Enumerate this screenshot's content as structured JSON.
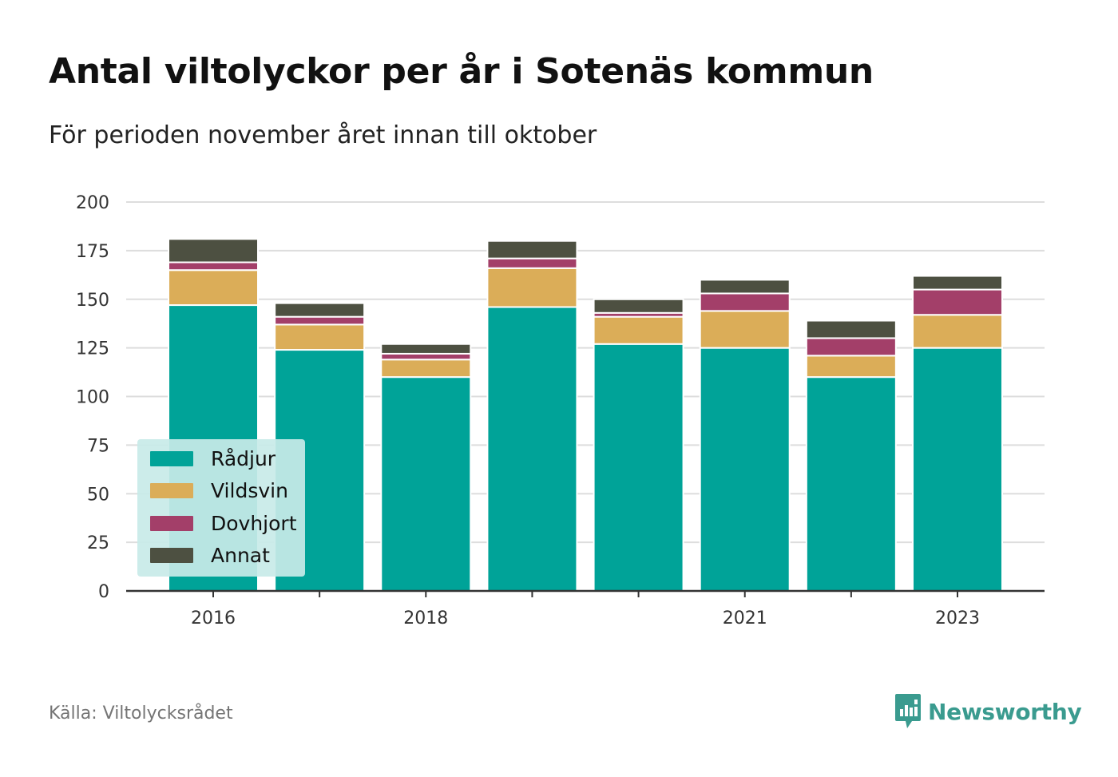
{
  "title": "Antal viltolyckor per år i Sotenäs kommun",
  "subtitle": "För perioden november året innan till oktober",
  "source": "Källa: Viltolycksrådet",
  "brand": {
    "name": "Newsworthy",
    "logo_icon": "newsworthy-bar-chart-logo-icon"
  },
  "colors": {
    "Rådjur": "#00a398",
    "Vildsvin": "#dbad58",
    "Dovhjort": "#a33f69",
    "Annat": "#4d5041",
    "grid": "#dddddd",
    "axis": "#333333"
  },
  "chart_data": {
    "type": "bar",
    "stacked": true,
    "title": "Antal viltolyckor per år i Sotenäs kommun",
    "subtitle": "För perioden november året innan till oktober",
    "categories": [
      "2016",
      "2017",
      "2018",
      "2019",
      "2020",
      "2021",
      "2022",
      "2023"
    ],
    "x_tick_labels": [
      "2016",
      "",
      "2018",
      "",
      "",
      "2021",
      "",
      "2023"
    ],
    "series": [
      {
        "name": "Rådjur",
        "values": [
          147,
          124,
          110,
          146,
          127,
          125,
          110,
          125
        ]
      },
      {
        "name": "Vildsvin",
        "values": [
          18,
          13,
          9,
          20,
          14,
          19,
          11,
          17
        ]
      },
      {
        "name": "Dovhjort",
        "values": [
          4,
          4,
          3,
          5,
          2,
          9,
          9,
          13
        ]
      },
      {
        "name": "Annat",
        "values": [
          12,
          7,
          5,
          9,
          7,
          7,
          9,
          7
        ]
      }
    ],
    "ylim": [
      0,
      200
    ],
    "yticks": [
      0,
      25,
      50,
      75,
      100,
      125,
      150,
      175,
      200
    ],
    "grid": true,
    "legend_position": "bottom-left"
  }
}
